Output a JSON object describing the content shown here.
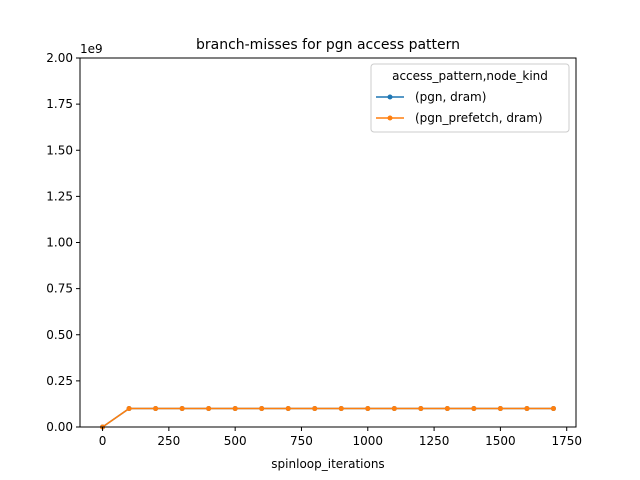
{
  "chart_data": {
    "type": "line",
    "title": "branch-misses for pgn access pattern",
    "xlabel": "spinloop_iterations",
    "ylabel": "",
    "y_offset_label": "1e9",
    "xlim": [
      -85,
      1785
    ],
    "ylim": [
      0,
      2000000000
    ],
    "x_ticks": [
      0,
      250,
      500,
      750,
      1000,
      1250,
      1500,
      1750
    ],
    "y_ticks": [
      0,
      250000000,
      500000000,
      750000000,
      1000000000,
      1250000000,
      1500000000,
      1750000000,
      2000000000
    ],
    "y_tick_labels": [
      "0.00",
      "0.25",
      "0.50",
      "0.75",
      "1.00",
      "1.25",
      "1.50",
      "1.75",
      "2.00"
    ],
    "x": [
      0,
      100,
      200,
      300,
      400,
      500,
      600,
      700,
      800,
      900,
      1000,
      1100,
      1200,
      1300,
      1400,
      1500,
      1600,
      1700
    ],
    "series": [
      {
        "name": "(pgn, dram)",
        "color": "#1f77b4",
        "values": [
          0,
          100000000,
          100000000,
          100000000,
          100000000,
          100000000,
          100000000,
          100000000,
          100000000,
          100000000,
          100000000,
          100000000,
          100000000,
          100000000,
          100000000,
          100000000,
          100000000,
          100000000
        ]
      },
      {
        "name": "(pgn_prefetch, dram)",
        "color": "#ff7f0e",
        "values": [
          0,
          100000000,
          100000000,
          100000000,
          100000000,
          100000000,
          100000000,
          100000000,
          100000000,
          100000000,
          100000000,
          100000000,
          100000000,
          100000000,
          100000000,
          100000000,
          100000000,
          100000000
        ]
      }
    ],
    "legend": {
      "title": "access_pattern,node_kind",
      "placement": "top-right"
    },
    "grid": false
  }
}
